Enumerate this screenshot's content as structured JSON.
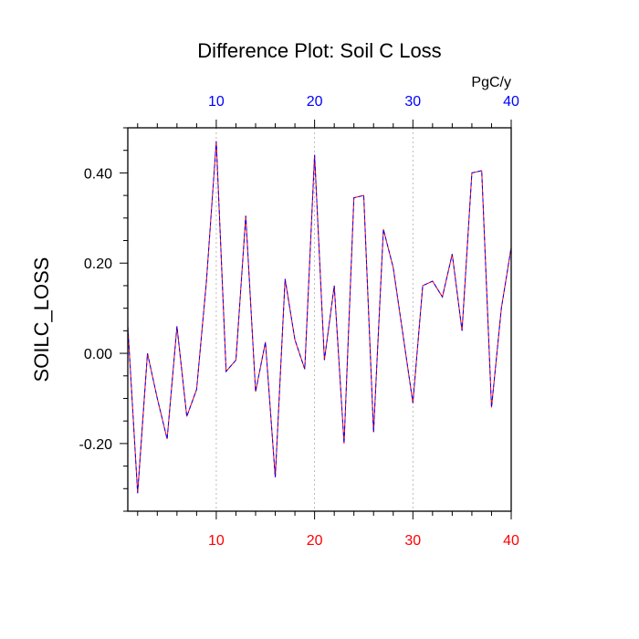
{
  "chart_data": {
    "type": "line",
    "title": "Difference Plot: Soil C Loss",
    "units": "PgC/y",
    "ylabel": "SOILC_LOSS",
    "xlabel": "",
    "xlim": [
      1,
      40
    ],
    "ylim": [
      -0.35,
      0.5
    ],
    "x_ticks": [
      10,
      20,
      30,
      40
    ],
    "y_ticks": [
      -0.2,
      0.0,
      0.2,
      0.4
    ],
    "y_tick_labels": [
      "-0.20",
      "0.00",
      "0.20",
      "0.40"
    ],
    "bottom_tick_labels": [
      "10",
      "20",
      "30",
      "40"
    ],
    "top_tick_labels": [
      "10",
      "20",
      "30",
      "40"
    ],
    "grid": "vertical dotted at major x ticks",
    "colors": {
      "bottom_ticks": "#ff0000",
      "top_ticks": "#0000ff",
      "line_a": "#ff0000",
      "line_b": "#0000ff"
    },
    "series": [
      {
        "x": [
          1,
          2,
          3,
          4,
          5,
          6,
          7,
          8,
          9,
          10,
          11,
          12,
          13,
          14,
          15,
          16,
          17,
          18,
          19,
          20,
          21,
          22,
          23,
          24,
          25,
          26,
          27,
          28,
          29,
          30,
          31,
          32,
          33,
          34,
          35,
          36,
          37,
          38,
          39,
          40
        ],
        "values": [
          0.06,
          -0.31,
          0.0,
          -0.1,
          -0.19,
          0.06,
          -0.14,
          -0.08,
          0.16,
          0.47,
          -0.04,
          -0.015,
          0.305,
          -0.085,
          0.025,
          -0.275,
          0.165,
          0.03,
          -0.035,
          0.44,
          -0.015,
          0.15,
          -0.2,
          0.345,
          0.35,
          -0.175,
          0.275,
          0.19,
          0.04,
          -0.11,
          0.15,
          0.16,
          0.125,
          0.22,
          0.05,
          0.4,
          0.405,
          -0.12,
          0.1,
          0.235
        ]
      }
    ]
  }
}
